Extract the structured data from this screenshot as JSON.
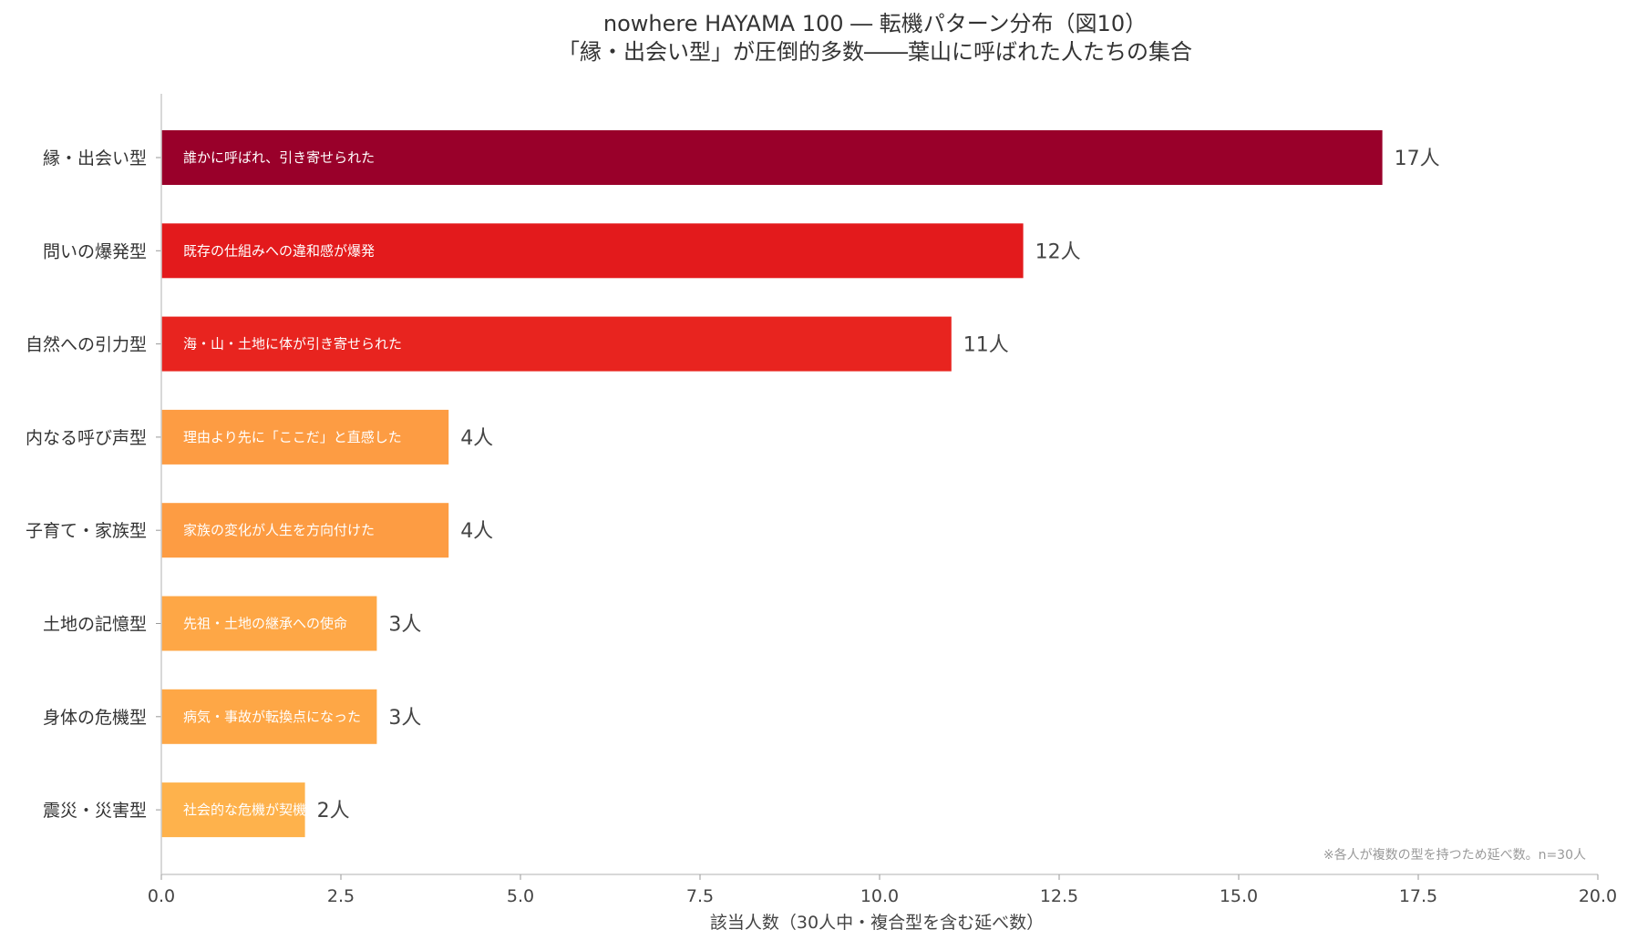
{
  "chart_data": {
    "type": "bar",
    "orientation": "horizontal",
    "title_line1": "nowhere HAYAMA 100 ― 転機パターン分布（図10）",
    "title_line2": "「縁・出会い型」が圧倒的多数――葉山に呼ばれた人たちの集合",
    "xlabel": "該当人数（30人中・複合型を含む延べ数）",
    "ylabel": "",
    "xlim": [
      0,
      20
    ],
    "xticks": [
      "0.0",
      "2.5",
      "5.0",
      "7.5",
      "10.0",
      "12.5",
      "15.0",
      "17.5",
      "20.0"
    ],
    "grid": false,
    "categories": [
      "縁・出会い型",
      "問いの爆発型",
      "自然への引力型",
      "内なる呼び声型",
      "子育て・家族型",
      "土地の記憶型",
      "身体の危機型",
      "震災・災害型"
    ],
    "values": [
      17,
      12,
      11,
      4,
      4,
      3,
      3,
      2
    ],
    "value_labels": [
      "17人",
      "12人",
      "11人",
      "4人",
      "4人",
      "3人",
      "3人",
      "2人"
    ],
    "descriptions": [
      "誰かに呼ばれ、引き寄せられた",
      "既存の仕組みへの違和感が爆発",
      "海・山・土地に体が引き寄せられた",
      "理由より先に「ここだ」と直感した",
      "家族の変化が人生を方向付けた",
      "先祖・土地の継承への使命",
      "病気・事故が転換点になった",
      "社会的な危機が契機"
    ],
    "colors": [
      "#99002a",
      "#e31a1c",
      "#e8241f",
      "#fd9c43",
      "#fd9c43",
      "#fea746",
      "#fea746",
      "#feb24c"
    ],
    "note": "※各人が複数の型を持つため延べ数。n=30人"
  }
}
